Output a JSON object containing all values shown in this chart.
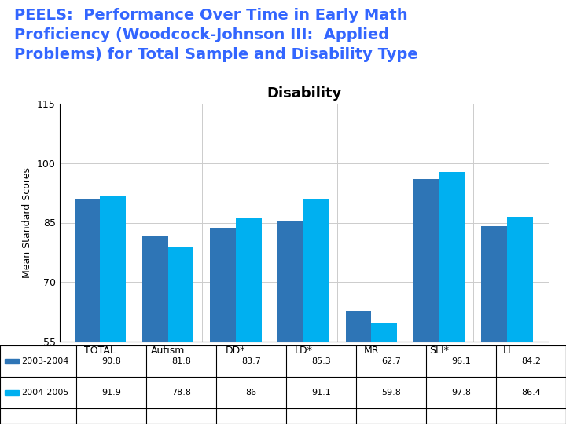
{
  "title": "PEELS:  Performance Over Time in Early Math\nProficiency (Woodcock-Johnson III:  Applied\nProblems) for Total Sample and Disability Type",
  "title_bg_color": "#000000",
  "title_text_color": "#3366FF",
  "chart_title": "Disability",
  "ylabel": "Mean Standard Scores",
  "categories": [
    "TOTAL",
    "Autism",
    "DD*",
    "LD*",
    "MR",
    "SLI*",
    "LI"
  ],
  "series": [
    {
      "label": "2003-2004",
      "values": [
        90.8,
        81.8,
        83.7,
        85.3,
        62.7,
        96.1,
        84.2
      ],
      "color": "#2E75B6"
    },
    {
      "label": "2004-2005",
      "values": [
        91.9,
        78.8,
        86.0,
        91.1,
        59.8,
        97.8,
        86.4
      ],
      "color": "#00B0F0"
    }
  ],
  "ylim": [
    55,
    115
  ],
  "yticks": [
    55,
    70,
    85,
    100,
    115
  ],
  "table_rows": [
    [
      "2003-2004",
      "90.8",
      "81.8",
      "83.7",
      "85.3",
      "62.7",
      "96.1",
      "84.2"
    ],
    [
      "2004-2005",
      "91.9",
      "78.8",
      "86",
      "91.1",
      "59.8",
      "97.8",
      "86.4"
    ]
  ],
  "table_row_colors": [
    "#2E75B6",
    "#00B0F0"
  ],
  "bar_width": 0.38,
  "background_color": "#FFFFFF",
  "title_font_size": 14,
  "chart_title_font_size": 13,
  "axis_font_size": 9,
  "ylabel_font_size": 9,
  "table_font_size": 8
}
